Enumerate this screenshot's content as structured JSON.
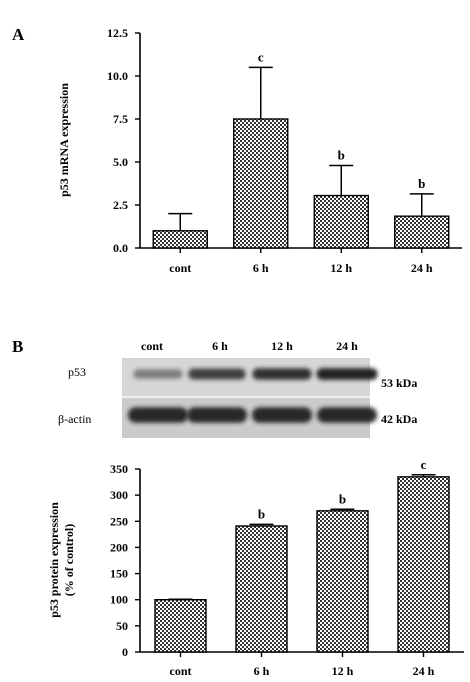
{
  "panels": {
    "a": "A",
    "b": "B"
  },
  "chart_data": [
    {
      "type": "bar",
      "panel": "A",
      "categories": [
        "cont",
        "6 h",
        "12 h",
        "24 h"
      ],
      "values": [
        1.0,
        7.5,
        3.05,
        1.85
      ],
      "errors": [
        1.0,
        3.0,
        1.75,
        1.3
      ],
      "significance": [
        "",
        "c",
        "b",
        "b"
      ],
      "ylabel": "p53 mRNA expression",
      "ylim": [
        0,
        12.5
      ],
      "yticks": [
        0,
        2.5,
        5,
        7.5,
        10,
        12.5
      ],
      "ytick_labels": [
        "0.0",
        "2.5",
        "5.0",
        "7.5",
        "10.0",
        "12.5"
      ],
      "grid": false,
      "fill": "checkered"
    },
    {
      "type": "bar",
      "panel": "B",
      "categories": [
        "cont",
        "6 h",
        "12 h",
        "24 h"
      ],
      "values": [
        100,
        241,
        270,
        335
      ],
      "errors": [
        1,
        3,
        3,
        4
      ],
      "significance": [
        "",
        "b",
        "b",
        "c"
      ],
      "ylabel_lines": [
        "p53 protein expression",
        "(% of control)"
      ],
      "ylim": [
        0,
        350
      ],
      "yticks": [
        0,
        50,
        100,
        150,
        200,
        250,
        300,
        350
      ],
      "ytick_labels": [
        "0",
        "50",
        "100",
        "150",
        "200",
        "250",
        "300",
        "350"
      ],
      "grid": false,
      "fill": "checkered"
    }
  ],
  "blot": {
    "lanes": [
      "cont",
      "6 h",
      "12 h",
      "24 h"
    ],
    "rows": [
      {
        "protein": "p53",
        "size": "53 kDa",
        "intensities": [
          0.3,
          0.75,
          0.85,
          0.95
        ]
      },
      {
        "protein": "β-actin",
        "size": "42 kDa",
        "intensities": [
          0.9,
          0.9,
          0.9,
          0.9
        ]
      }
    ]
  },
  "colors": {
    "ink": "#000000",
    "blot_bg": "#cfcfcf",
    "band": "#1e1e1e"
  }
}
